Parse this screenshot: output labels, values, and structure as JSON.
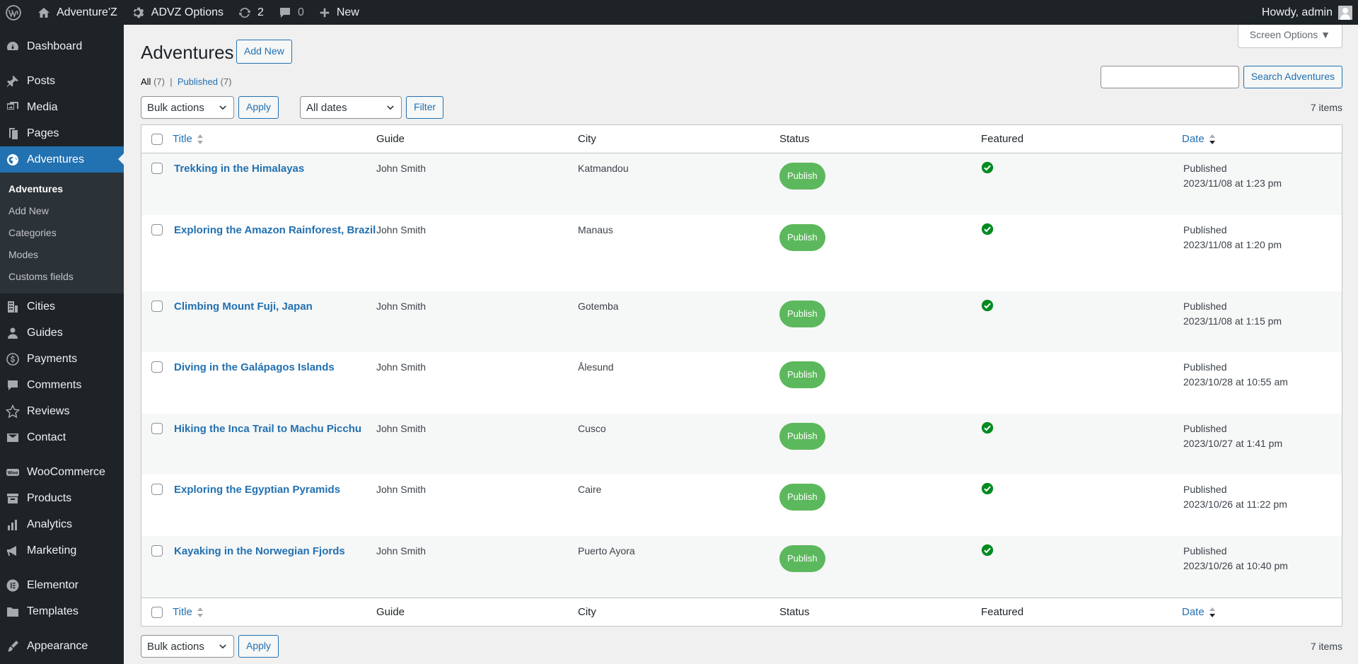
{
  "adminbar": {
    "site_name": "Adventure'Z",
    "options_label": "ADVZ Options",
    "updates_count": "2",
    "comments_count": "0",
    "new_label": "New",
    "greeting": "Howdy, admin"
  },
  "sidebar": {
    "items": [
      {
        "label": "Dashboard",
        "icon": "dashboard-icon"
      },
      {
        "label": "Posts",
        "icon": "pin-icon"
      },
      {
        "label": "Media",
        "icon": "media-icon"
      },
      {
        "label": "Pages",
        "icon": "pages-icon"
      },
      {
        "label": "Adventures",
        "icon": "globe-icon"
      },
      {
        "label": "Cities",
        "icon": "building-icon"
      },
      {
        "label": "Guides",
        "icon": "user-icon"
      },
      {
        "label": "Payments",
        "icon": "dollar-icon"
      },
      {
        "label": "Comments",
        "icon": "comment-icon"
      },
      {
        "label": "Reviews",
        "icon": "star-icon"
      },
      {
        "label": "Contact",
        "icon": "email-icon"
      },
      {
        "label": "WooCommerce",
        "icon": "woo-icon"
      },
      {
        "label": "Products",
        "icon": "archive-icon"
      },
      {
        "label": "Analytics",
        "icon": "chart-icon"
      },
      {
        "label": "Marketing",
        "icon": "megaphone-icon"
      },
      {
        "label": "Elementor",
        "icon": "elementor-icon"
      },
      {
        "label": "Templates",
        "icon": "folder-icon"
      },
      {
        "label": "Appearance",
        "icon": "brush-icon"
      }
    ],
    "submenu": [
      "Adventures",
      "Add New",
      "Categories",
      "Modes",
      "Customs fields"
    ]
  },
  "page": {
    "screen_options": "Screen Options",
    "title": "Adventures",
    "add_new": "Add New",
    "filter_all": "All",
    "filter_all_count": "(7)",
    "filter_sep": "|",
    "filter_published": "Published",
    "filter_published_count": "(7)",
    "search_button": "Search Adventures",
    "bulk_actions": "Bulk actions",
    "apply": "Apply",
    "all_dates": "All dates",
    "filter": "Filter",
    "items_count": "7 items"
  },
  "table": {
    "columns": {
      "title": "Title",
      "guide": "Guide",
      "city": "City",
      "status": "Status",
      "featured": "Featured",
      "date": "Date"
    },
    "rows": [
      {
        "title": "Trekking in the Himalayas",
        "guide": "John Smith",
        "city": "Katmandou",
        "status": "Publish",
        "featured": true,
        "date_status": "Published",
        "date": "2023/11/08 at 1:23 pm"
      },
      {
        "title": "Exploring the Amazon Rainforest, Brazil",
        "guide": "John Smith",
        "city": "Manaus",
        "status": "Publish",
        "featured": true,
        "date_status": "Published",
        "date": "2023/11/08 at 1:20 pm"
      },
      {
        "title": "Climbing Mount Fuji, Japan",
        "guide": "John Smith",
        "city": "Gotemba",
        "status": "Publish",
        "featured": true,
        "date_status": "Published",
        "date": "2023/11/08 at 1:15 pm"
      },
      {
        "title": "Diving in the Galápagos Islands",
        "guide": "John Smith",
        "city": "Ålesund",
        "status": "Publish",
        "featured": false,
        "date_status": "Published",
        "date": "2023/10/28 at 10:55 am"
      },
      {
        "title": "Hiking the Inca Trail to Machu Picchu",
        "guide": "John Smith",
        "city": "Cusco",
        "status": "Publish",
        "featured": true,
        "date_status": "Published",
        "date": "2023/10/27 at 1:41 pm"
      },
      {
        "title": "Exploring the Egyptian Pyramids",
        "guide": "John Smith",
        "city": "Caire",
        "status": "Publish",
        "featured": true,
        "date_status": "Published",
        "date": "2023/10/26 at 11:22 pm"
      },
      {
        "title": "Kayaking in the Norwegian Fjords",
        "guide": "John Smith",
        "city": "Puerto Ayora",
        "status": "Publish",
        "featured": true,
        "date_status": "Published",
        "date": "2023/10/26 at 10:40 pm"
      }
    ]
  },
  "colors": {
    "accent": "#2271b1",
    "sidebar_bg": "#1d2327",
    "publish_badge": "#5cb85c",
    "featured_check": "#008a20"
  }
}
